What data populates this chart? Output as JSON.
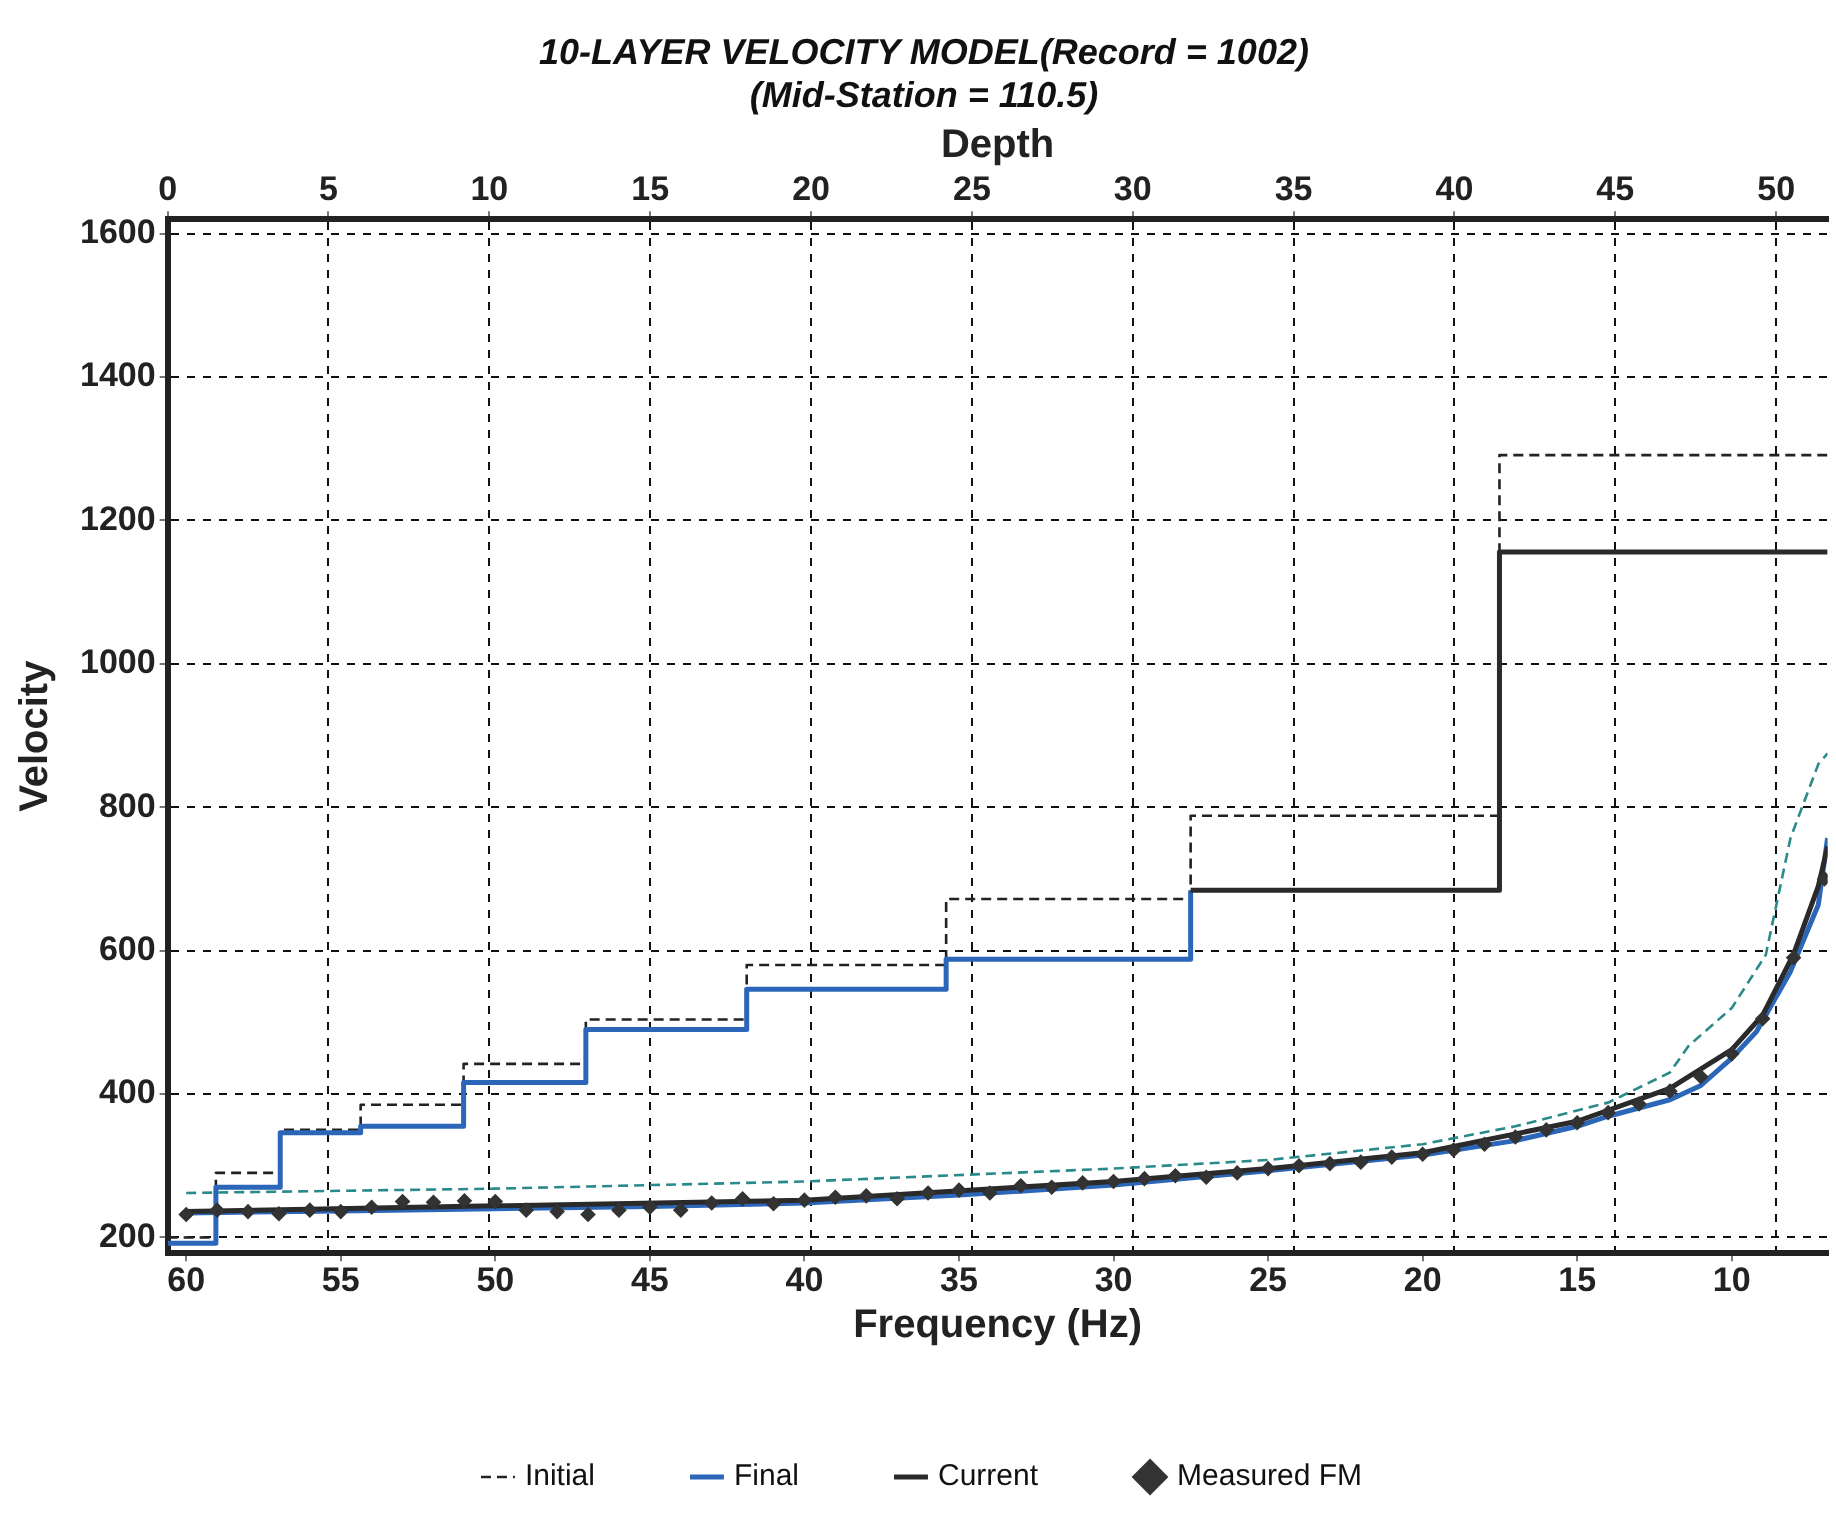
{
  "chart_data": {
    "type": "line",
    "title": "10-LAYER VELOCITY MODEL(Record = 1002)",
    "subtitle": "(Mid-Station = 110.5)",
    "xlabel": "Frequency (Hz)",
    "x2label": "Depth",
    "ylabel": "Velocity",
    "xlim": [
      60.6,
      6.9
    ],
    "xticks": [
      60,
      55,
      50,
      45,
      40,
      35,
      30,
      25,
      20,
      15,
      10
    ],
    "x2lim": [
      0,
      51.6
    ],
    "x2ticks": [
      0,
      5,
      10,
      15,
      20,
      25,
      30,
      35,
      40,
      45,
      50
    ],
    "ylim": [
      178,
      1620
    ],
    "yticks": [
      200,
      400,
      600,
      800,
      1000,
      1200,
      1400,
      1600
    ],
    "grid": true,
    "legend": "bottom",
    "series": [
      {
        "name": "Initial",
        "type": "step",
        "axis": "x2",
        "color": "#222222",
        "line_style": "dashed",
        "marker": "none",
        "x": [
          0,
          1.5,
          3.5,
          6.0,
          9.2,
          13.0,
          18.0,
          24.2,
          31.8,
          41.4,
          51.6
        ],
        "values": [
          200,
          290,
          350,
          385,
          442,
          504,
          580,
          672,
          788,
          1291,
          1291
        ]
      },
      {
        "name": "Final",
        "type": "step",
        "axis": "x2",
        "color": "#2b66b8",
        "line_style": "solid",
        "marker": "none",
        "x": [
          0,
          1.5,
          3.5,
          6.0,
          9.2,
          13.0,
          18.0,
          24.2,
          31.8
        ],
        "values": [
          192,
          270,
          346,
          355,
          416,
          490,
          546,
          588,
          684
        ]
      },
      {
        "name": "Current",
        "type": "step",
        "axis": "x2",
        "color": "#2a2a2a",
        "line_style": "solid",
        "marker": "none",
        "x": [
          31.8,
          41.4,
          51.6
        ],
        "values": [
          684,
          1156,
          1156
        ]
      },
      {
        "type": "line",
        "color": "#2a8a8a",
        "line_style": "dashed",
        "marker": "none",
        "x": [
          60,
          50,
          40,
          30,
          25,
          20,
          17,
          14,
          12,
          11.4,
          10,
          8.9,
          8.1,
          7.2,
          6.9
        ],
        "values": [
          262,
          268,
          278,
          296,
          308,
          330,
          355,
          388,
          430,
          467,
          520,
          594,
          757,
          860,
          875
        ]
      },
      {
        "type": "line",
        "color": "#2b66b8",
        "line_style": "solid",
        "marker": "none",
        "x": [
          60,
          55,
          50,
          45,
          40,
          35,
          30,
          25,
          20,
          17,
          15,
          14,
          12,
          11,
          10,
          9.2,
          8.1,
          7.2,
          6.9
        ],
        "values": [
          234,
          237,
          240,
          243,
          248,
          259,
          273,
          293,
          315,
          335,
          355,
          369,
          392,
          412,
          450,
          487,
          571,
          664,
          757
        ]
      },
      {
        "type": "line",
        "color": "#2a2a2a",
        "line_style": "solid",
        "marker": "none",
        "x": [
          60,
          50,
          40,
          30,
          25,
          20,
          15,
          12,
          10,
          9,
          8,
          7.2,
          6.9
        ],
        "values": [
          236,
          244,
          252,
          278,
          296,
          318,
          362,
          408,
          462,
          510,
          595,
          690,
          745
        ]
      },
      {
        "name": "Measured FM",
        "type": "scatter",
        "color": "#333333",
        "marker": "diamond",
        "x": [
          60,
          59,
          58,
          57,
          56,
          55,
          54,
          53,
          52,
          51,
          50,
          49,
          48,
          47,
          46,
          45,
          44,
          43,
          42,
          41,
          40,
          39,
          38,
          37,
          36,
          35,
          34,
          33,
          32,
          31,
          30,
          29,
          28,
          27,
          26,
          25,
          24,
          23,
          22,
          21,
          20,
          19,
          18,
          17,
          16,
          15,
          14,
          13,
          12,
          11,
          10,
          9,
          8,
          7
        ],
        "values": [
          232,
          238,
          236,
          233,
          238,
          236,
          242,
          250,
          249,
          251,
          250,
          238,
          236,
          232,
          238,
          242,
          238,
          248,
          254,
          247,
          252,
          256,
          258,
          254,
          262,
          266,
          262,
          272,
          270,
          276,
          278,
          282,
          286,
          284,
          290,
          296,
          300,
          303,
          305,
          312,
          316,
          322,
          330,
          340,
          350,
          360,
          374,
          386,
          404,
          424,
          456,
          505,
          590,
          700
        ]
      }
    ]
  }
}
